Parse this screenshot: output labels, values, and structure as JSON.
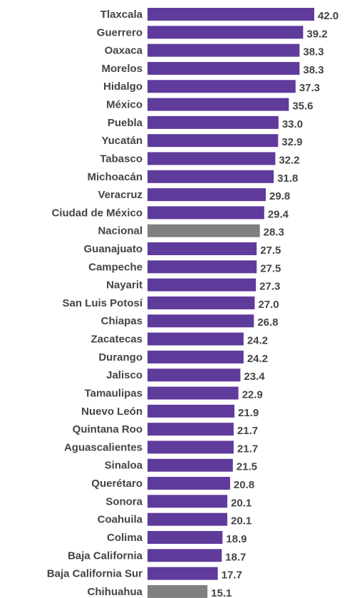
{
  "chart_data": {
    "type": "barh",
    "categories": [
      "Tlaxcala",
      "Guerrero",
      "Oaxaca",
      "Morelos",
      "Hidalgo",
      "México",
      "Puebla",
      "Yucatán",
      "Tabasco",
      "Michoacán",
      "Veracruz",
      "Ciudad de México",
      "Nacional",
      "Guanajuato",
      "Campeche",
      "Nayarit",
      "San Luis Potosí",
      "Chiapas",
      "Zacatecas",
      "Durango",
      "Jalisco",
      "Tamaulipas",
      "Nuevo León",
      "Quintana Roo",
      "Aguascalientes",
      "Sinaloa",
      "Querétaro",
      "Sonora",
      "Coahuila",
      "Colima",
      "Baja California",
      "Baja California Sur",
      "Chihuahua"
    ],
    "values": [
      42.0,
      39.2,
      38.3,
      38.3,
      37.3,
      35.6,
      33.0,
      32.9,
      32.2,
      31.8,
      29.8,
      29.4,
      28.3,
      27.5,
      27.5,
      27.3,
      27.0,
      26.8,
      24.2,
      24.2,
      23.4,
      22.9,
      21.9,
      21.7,
      21.7,
      21.5,
      20.8,
      20.1,
      20.1,
      18.9,
      18.7,
      17.7,
      15.1
    ],
    "value_labels": [
      "42.0",
      "39.2",
      "38.3",
      "38.3",
      "37.3",
      "35.6",
      "33.0",
      "32.9",
      "32.2",
      "31.8",
      "29.8",
      "29.4",
      "28.3",
      "27.5",
      "27.5",
      "27.3",
      "27.0",
      "26.8",
      "24.2",
      "24.2",
      "23.4",
      "22.9",
      "21.9",
      "21.7",
      "21.7",
      "21.5",
      "20.8",
      "20.1",
      "20.1",
      "18.9",
      "18.7",
      "17.7",
      "15.1"
    ],
    "colors": [
      "#5f3b9c",
      "#5f3b9c",
      "#5f3b9c",
      "#5f3b9c",
      "#5f3b9c",
      "#5f3b9c",
      "#5f3b9c",
      "#5f3b9c",
      "#5f3b9c",
      "#5f3b9c",
      "#5f3b9c",
      "#5f3b9c",
      "#808080",
      "#5f3b9c",
      "#5f3b9c",
      "#5f3b9c",
      "#5f3b9c",
      "#5f3b9c",
      "#5f3b9c",
      "#5f3b9c",
      "#5f3b9c",
      "#5f3b9c",
      "#5f3b9c",
      "#5f3b9c",
      "#5f3b9c",
      "#5f3b9c",
      "#5f3b9c",
      "#5f3b9c",
      "#5f3b9c",
      "#5f3b9c",
      "#5f3b9c",
      "#5f3b9c",
      "#808080"
    ]
  }
}
